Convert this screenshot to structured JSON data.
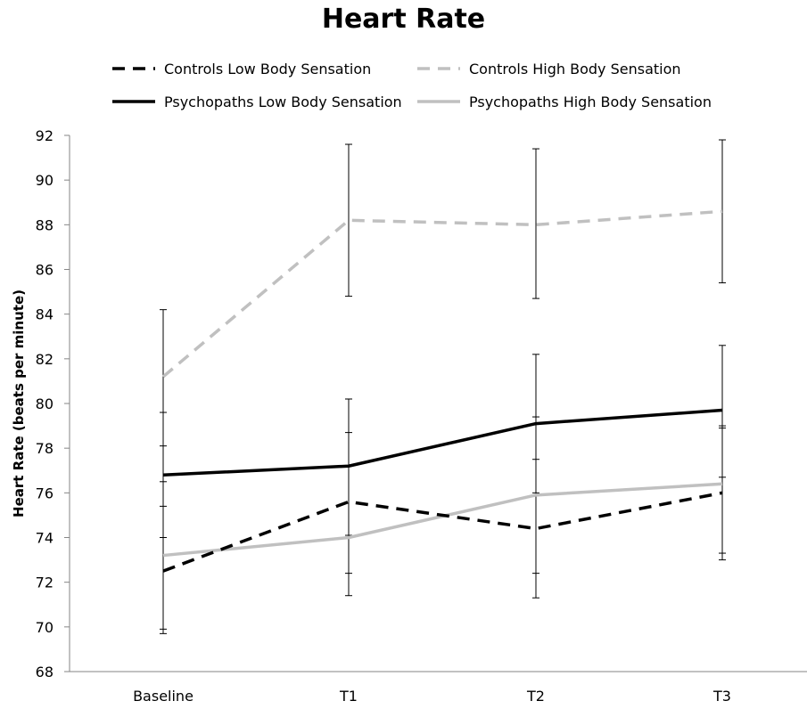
{
  "chart_data": {
    "type": "line",
    "title": "Heart Rate",
    "xlabel": "",
    "ylabel": "Heart Rate (beats per minute)",
    "categories": [
      "Baseline",
      "T1",
      "T2",
      "T3"
    ],
    "ylim": [
      68,
      92
    ],
    "yticks": [
      68,
      70,
      72,
      74,
      76,
      78,
      80,
      82,
      84,
      86,
      88,
      90,
      92
    ],
    "grid": false,
    "legend_position": "top",
    "series": [
      {
        "name": "Controls Low Body Sensation",
        "values": [
          72.5,
          75.6,
          74.4,
          76.0
        ],
        "error_low": [
          69.7,
          71.4,
          71.3,
          73.0
        ],
        "error_high": [
          75.4,
          80.2,
          77.5,
          78.9
        ],
        "color": "#000000",
        "dash": "dashed"
      },
      {
        "name": "Controls High Body Sensation",
        "values": [
          81.2,
          88.2,
          88.0,
          88.6
        ],
        "error_low": [
          78.1,
          84.8,
          84.7,
          85.4
        ],
        "error_high": [
          84.2,
          91.6,
          91.4,
          91.8
        ],
        "color": "#c0c0c0",
        "dash": "dashed"
      },
      {
        "name": "Psychopaths Low Body Sensation",
        "values": [
          76.8,
          77.2,
          79.1,
          79.7
        ],
        "error_low": [
          74.0,
          74.1,
          76.0,
          76.7
        ],
        "error_high": [
          79.6,
          80.2,
          82.2,
          82.6
        ],
        "color": "#000000",
        "dash": "solid"
      },
      {
        "name": "Psychopaths High Body Sensation",
        "values": [
          73.2,
          74.0,
          75.9,
          76.4
        ],
        "error_low": [
          69.9,
          72.4,
          72.4,
          73.3
        ],
        "error_high": [
          76.5,
          78.7,
          79.4,
          79.0
        ],
        "color": "#c0c0c0",
        "dash": "solid"
      }
    ]
  }
}
